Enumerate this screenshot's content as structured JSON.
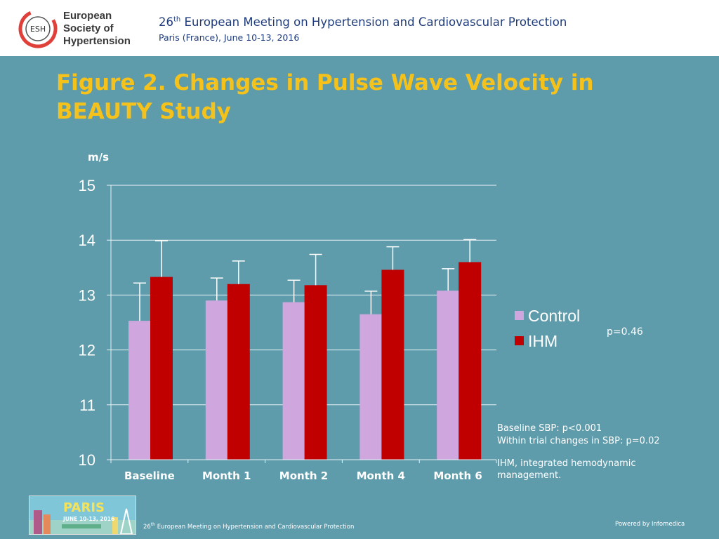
{
  "header": {
    "org_name_lines": [
      "European",
      "Society of",
      "Hypertension"
    ],
    "logo_text": "ESH",
    "meeting_ordinal": "26",
    "meeting_ordinal_suffix": "th",
    "meeting_name": "European Meeting on Hypertension and Cardiovascular Protection",
    "meeting_place_date": "Paris (France), June 10-13, 2016"
  },
  "slide": {
    "title_line1": "Figure 2. Changes in Pulse Wave Velocity in",
    "title_line2": "BEAUTY Study"
  },
  "chart_data": {
    "type": "bar",
    "title": "",
    "ylabel": "m/s",
    "xlabel": "",
    "ylim": [
      10,
      15
    ],
    "yticks": [
      "10",
      "11",
      "12",
      "13",
      "14",
      "15"
    ],
    "grid": true,
    "legend_position": "right",
    "categories": [
      "Baseline",
      "Month 1",
      "Month 2",
      "Month 4",
      "Month 6"
    ],
    "series": [
      {
        "name": "Control",
        "color": "#cfa6de",
        "values": [
          12.53,
          12.9,
          12.87,
          12.65,
          13.08
        ],
        "error": [
          0.69,
          0.41,
          0.4,
          0.42,
          0.4
        ]
      },
      {
        "name": "IHM",
        "color": "#c00000",
        "values": [
          13.33,
          13.2,
          13.18,
          13.46,
          13.6
        ],
        "error": [
          0.66,
          0.42,
          0.56,
          0.42,
          0.41
        ]
      }
    ],
    "annotations": {
      "p_value": "p=0.46"
    }
  },
  "notes": {
    "baseline_sbp": "Baseline SBP: p<0.001",
    "within_trial": "Within trial changes in SBP: p=0.02",
    "ihm_def_line1": "IHM, integrated hemodynamic",
    "ihm_def_line2": "management."
  },
  "footer": {
    "thumb_city": "PARIS",
    "thumb_date": "JUNE 10-13, 2016",
    "meeting_ordinal": "26",
    "meeting_ordinal_suffix": "th",
    "meeting_name": "European Meeting on Hypertension and Cardiovascular Protection",
    "powered_by": "Powered by Infomedica"
  },
  "colors": {
    "background": "#5e9bab",
    "title": "#f5c21b",
    "control": "#cfa6de",
    "ihm": "#c00000",
    "esh_red": "#e0403a"
  }
}
